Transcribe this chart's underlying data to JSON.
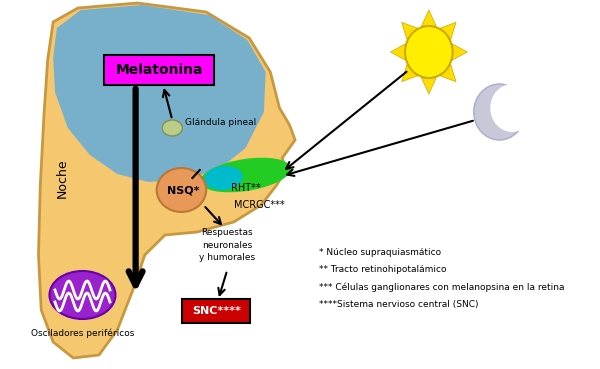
{
  "bg_color": "#FFFFFF",
  "skin_color": "#F5C870",
  "brain_color": "#6BAED6",
  "head_outline_color": "#C89840",
  "melatonina_text": "Melatonina",
  "melatonina_box_color": "#FF00FF",
  "pineal_label": "Glándula pineal",
  "pineal_color": "#BBCC88",
  "nsq_label": "NSQ*",
  "nsq_color": "#E89858",
  "rht_label": "RHT**",
  "mcrgc_label": "MCRGC***",
  "eye_green": "#22CC22",
  "eye_teal": "#00BBCC",
  "noche_label": "Noche",
  "osc_color": "#9922CC",
  "osc_label": "Osciladores periféricos",
  "snc_box_color": "#CC0000",
  "snc_label": "SNC****",
  "respuestas_label": "Respuestas\nneuronales\ny humorales",
  "sun_color": "#FFEE00",
  "sun_ray_color": "#FFDD00",
  "moon_color": "#C8C8D8",
  "arrow_color": "#000000",
  "footnote1": "* Núcleo supraquiasmático",
  "footnote2": "** Tracto retinohipotalámico",
  "footnote3": "*** Células ganglionares con melanopsina en la retina",
  "footnote4": "****Sistema nervioso central (SNC)"
}
